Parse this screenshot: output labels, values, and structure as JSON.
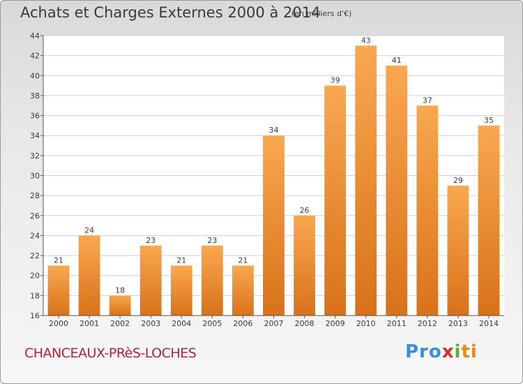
{
  "header": {
    "title": "Achats et Charges Externes 2000 à 2014",
    "subtitle": "(en milliers d'€)"
  },
  "footer": {
    "commune": "CHANCEAUX-PRèS-LOCHES",
    "logo": [
      "Pro",
      "x",
      "i",
      "ti"
    ]
  },
  "colors": {
    "bar_fill_light": "#f7a34d",
    "bar_fill_dark": "#d9741a",
    "grid": "#cccccc",
    "plot_bg": "#ffffff",
    "text": "#3a3a3a",
    "commune": "#b0243a"
  },
  "chart_data": {
    "type": "bar",
    "title": "Achats et Charges Externes 2000 à 2014",
    "subtitle": "(en milliers d'€)",
    "xlabel": "",
    "ylabel": "",
    "categories": [
      "2000",
      "2001",
      "2002",
      "2003",
      "2004",
      "2005",
      "2006",
      "2007",
      "2008",
      "2009",
      "2010",
      "2011",
      "2012",
      "2013",
      "2014"
    ],
    "values": [
      21,
      24,
      18,
      23,
      21,
      23,
      21,
      34,
      26,
      39,
      43,
      41,
      37,
      29,
      35
    ],
    "ylim": [
      16,
      44
    ],
    "yticks": [
      16,
      18,
      20,
      22,
      24,
      26,
      28,
      30,
      32,
      34,
      36,
      38,
      40,
      42,
      44
    ],
    "grid": true,
    "data_labels": true
  }
}
